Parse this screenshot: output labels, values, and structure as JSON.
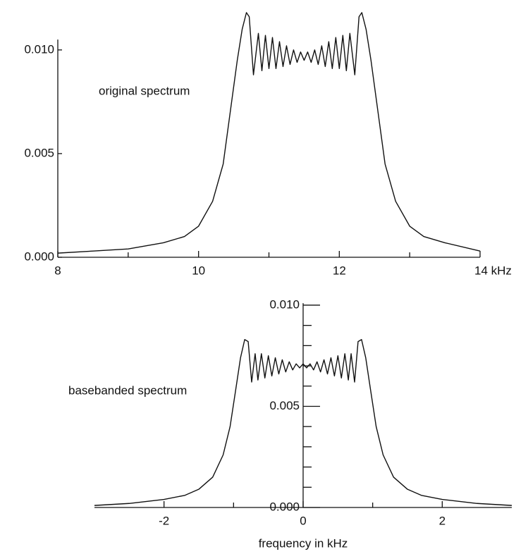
{
  "chart_data": [
    {
      "type": "line",
      "annotation": "original spectrum",
      "color": "#111111",
      "xlim": [
        8,
        14
      ],
      "ylim": [
        0,
        0.012
      ],
      "xticks": [
        8,
        10,
        12,
        {
          "value": 14,
          "label": "14 kHz"
        }
      ],
      "xticks_minor": [
        9,
        11,
        13
      ],
      "yticks": [
        {
          "value": 0,
          "label": "0.000"
        },
        {
          "value": 0.005,
          "label": "0.005"
        },
        {
          "value": 0.01,
          "label": "0.010"
        }
      ],
      "x": [
        8,
        8.5,
        9,
        9.5,
        9.8,
        10,
        10.2,
        10.35,
        10.45,
        10.55,
        10.62,
        10.68,
        10.72,
        10.78,
        10.85,
        10.9,
        10.95,
        11.0,
        11.05,
        11.1,
        11.15,
        11.2,
        11.25,
        11.3,
        11.35,
        11.4,
        11.45,
        11.5,
        11.55,
        11.6,
        11.65,
        11.7,
        11.75,
        11.8,
        11.85,
        11.9,
        11.95,
        12.0,
        12.05,
        12.1,
        12.15,
        12.22,
        12.28,
        12.32,
        12.38,
        12.45,
        12.55,
        12.65,
        12.8,
        13,
        13.2,
        13.5,
        14
      ],
      "values": [
        0.0002,
        0.0003,
        0.0004,
        0.0007,
        0.001,
        0.0015,
        0.0027,
        0.0045,
        0.007,
        0.0095,
        0.011,
        0.0118,
        0.0116,
        0.0088,
        0.0108,
        0.009,
        0.0107,
        0.0091,
        0.0106,
        0.0091,
        0.0104,
        0.0092,
        0.0102,
        0.0093,
        0.01,
        0.0094,
        0.0099,
        0.0095,
        0.0099,
        0.0094,
        0.01,
        0.0093,
        0.0102,
        0.0092,
        0.0104,
        0.0091,
        0.0106,
        0.0091,
        0.0107,
        0.009,
        0.0108,
        0.0088,
        0.0116,
        0.0118,
        0.011,
        0.0095,
        0.007,
        0.0045,
        0.0027,
        0.0015,
        0.001,
        0.0007,
        0.0003
      ]
    },
    {
      "type": "line",
      "annotation": "basebanded spectrum",
      "xlabel": "frequency in kHz",
      "color": "#111111",
      "xlim": [
        -3,
        3
      ],
      "ylim": [
        0,
        0.0105
      ],
      "xticks": [
        -2,
        0,
        2
      ],
      "xticks_minor": [
        -1,
        1
      ],
      "yticks": [
        {
          "value": 0,
          "label": "0.000"
        },
        {
          "value": 0.005,
          "label": "0.005"
        },
        {
          "value": 0.01,
          "label": "0.010"
        }
      ],
      "yticks_minor": [
        0.001,
        0.002,
        0.003,
        0.004,
        0.006,
        0.007,
        0.008,
        0.009
      ],
      "x": [
        -3,
        -2.5,
        -2,
        -1.7,
        -1.5,
        -1.3,
        -1.15,
        -1.05,
        -0.97,
        -0.9,
        -0.84,
        -0.79,
        -0.74,
        -0.69,
        -0.65,
        -0.6,
        -0.55,
        -0.5,
        -0.45,
        -0.4,
        -0.35,
        -0.3,
        -0.25,
        -0.2,
        -0.15,
        -0.1,
        -0.05,
        0,
        0.05,
        0.1,
        0.15,
        0.2,
        0.25,
        0.3,
        0.35,
        0.4,
        0.45,
        0.5,
        0.55,
        0.6,
        0.65,
        0.69,
        0.74,
        0.79,
        0.84,
        0.9,
        0.97,
        1.05,
        1.15,
        1.3,
        1.5,
        1.7,
        2,
        2.5,
        3
      ],
      "values": [
        0.0001,
        0.0002,
        0.0004,
        0.0006,
        0.0009,
        0.0015,
        0.0026,
        0.004,
        0.0058,
        0.0074,
        0.0083,
        0.0082,
        0.0062,
        0.0076,
        0.0063,
        0.0076,
        0.0064,
        0.0075,
        0.0065,
        0.0074,
        0.0066,
        0.0073,
        0.0067,
        0.0072,
        0.0068,
        0.0071,
        0.0069,
        0.0071,
        0.0069,
        0.0071,
        0.0068,
        0.0072,
        0.0067,
        0.0073,
        0.0066,
        0.0074,
        0.0065,
        0.0075,
        0.0064,
        0.0076,
        0.0063,
        0.0076,
        0.0062,
        0.0082,
        0.0083,
        0.0074,
        0.0058,
        0.004,
        0.0026,
        0.0015,
        0.0009,
        0.0006,
        0.0004,
        0.0002,
        0.0001
      ]
    }
  ]
}
